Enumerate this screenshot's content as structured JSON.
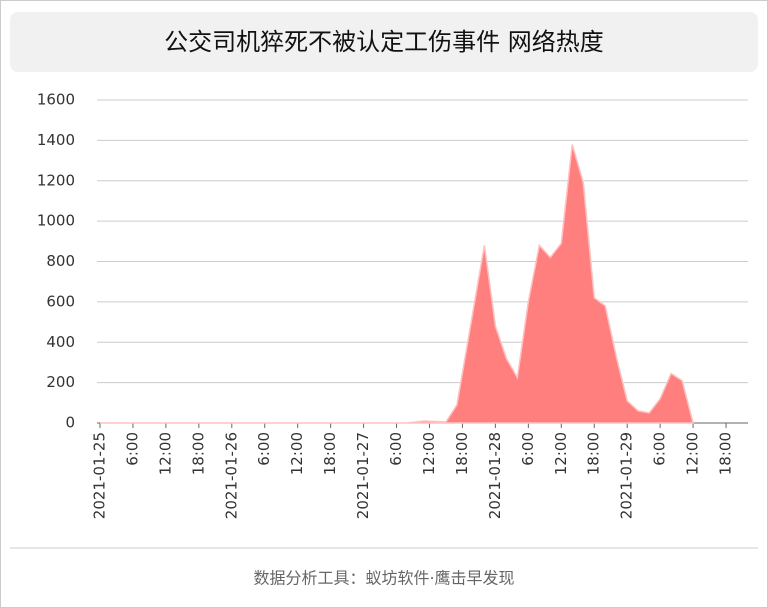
{
  "chart_data": {
    "type": "area",
    "title": "公交司机猝死不被认定工伤事件 网络热度",
    "footer": "数据分析工具：蚁坊软件·鹰击早发现",
    "x": [
      "2021-01-25 00:00",
      "2021-01-27 08:00",
      "2021-01-27 11:00",
      "2021-01-27 15:00",
      "2021-01-27 17:00",
      "2021-01-27 22:00",
      "2021-01-28 00:00",
      "2021-01-28 02:00",
      "2021-01-28 04:00",
      "2021-01-28 06:00",
      "2021-01-28 08:00",
      "2021-01-28 10:00",
      "2021-01-28 12:00",
      "2021-01-28 14:00",
      "2021-01-28 16:00",
      "2021-01-28 18:00",
      "2021-01-28 20:00",
      "2021-01-28 22:00",
      "2021-01-29 00:00",
      "2021-01-29 02:00",
      "2021-01-29 04:00",
      "2021-01-29 06:00",
      "2021-01-29 08:00",
      "2021-01-29 10:00",
      "2021-01-29 12:00"
    ],
    "values": [
      0,
      0,
      10,
      5,
      90,
      880,
      480,
      320,
      225,
      600,
      880,
      820,
      890,
      1380,
      1190,
      620,
      580,
      330,
      110,
      60,
      50,
      120,
      245,
      210,
      0
    ],
    "color": "#ff7f7f",
    "xlim": [
      "2021-01-25 00:00",
      "2021-01-29 22:00"
    ],
    "xticks": [
      {
        "value": "2021-01-25 00:00",
        "label": "2021-01-25"
      },
      {
        "value": "2021-01-25 06:00",
        "label": "6:00"
      },
      {
        "value": "2021-01-25 12:00",
        "label": "12:00"
      },
      {
        "value": "2021-01-25 18:00",
        "label": "18:00"
      },
      {
        "value": "2021-01-26 00:00",
        "label": "2021-01-26"
      },
      {
        "value": "2021-01-26 06:00",
        "label": "6:00"
      },
      {
        "value": "2021-01-26 12:00",
        "label": "12:00"
      },
      {
        "value": "2021-01-26 18:00",
        "label": "18:00"
      },
      {
        "value": "2021-01-27 00:00",
        "label": "2021-01-27"
      },
      {
        "value": "2021-01-27 06:00",
        "label": "6:00"
      },
      {
        "value": "2021-01-27 12:00",
        "label": "12:00"
      },
      {
        "value": "2021-01-27 18:00",
        "label": "18:00"
      },
      {
        "value": "2021-01-28 00:00",
        "label": "2021-01-28"
      },
      {
        "value": "2021-01-28 06:00",
        "label": "6:00"
      },
      {
        "value": "2021-01-28 12:00",
        "label": "12:00"
      },
      {
        "value": "2021-01-28 18:00",
        "label": "18:00"
      },
      {
        "value": "2021-01-29 00:00",
        "label": "2021-01-29"
      },
      {
        "value": "2021-01-29 06:00",
        "label": "6:00"
      },
      {
        "value": "2021-01-29 12:00",
        "label": "12:00"
      },
      {
        "value": "2021-01-29 18:00",
        "label": "18:00"
      }
    ],
    "ylim": [
      0,
      1600
    ],
    "yticks": [
      0,
      200,
      400,
      600,
      800,
      1000,
      1200,
      1400,
      1600
    ],
    "grid": true
  }
}
